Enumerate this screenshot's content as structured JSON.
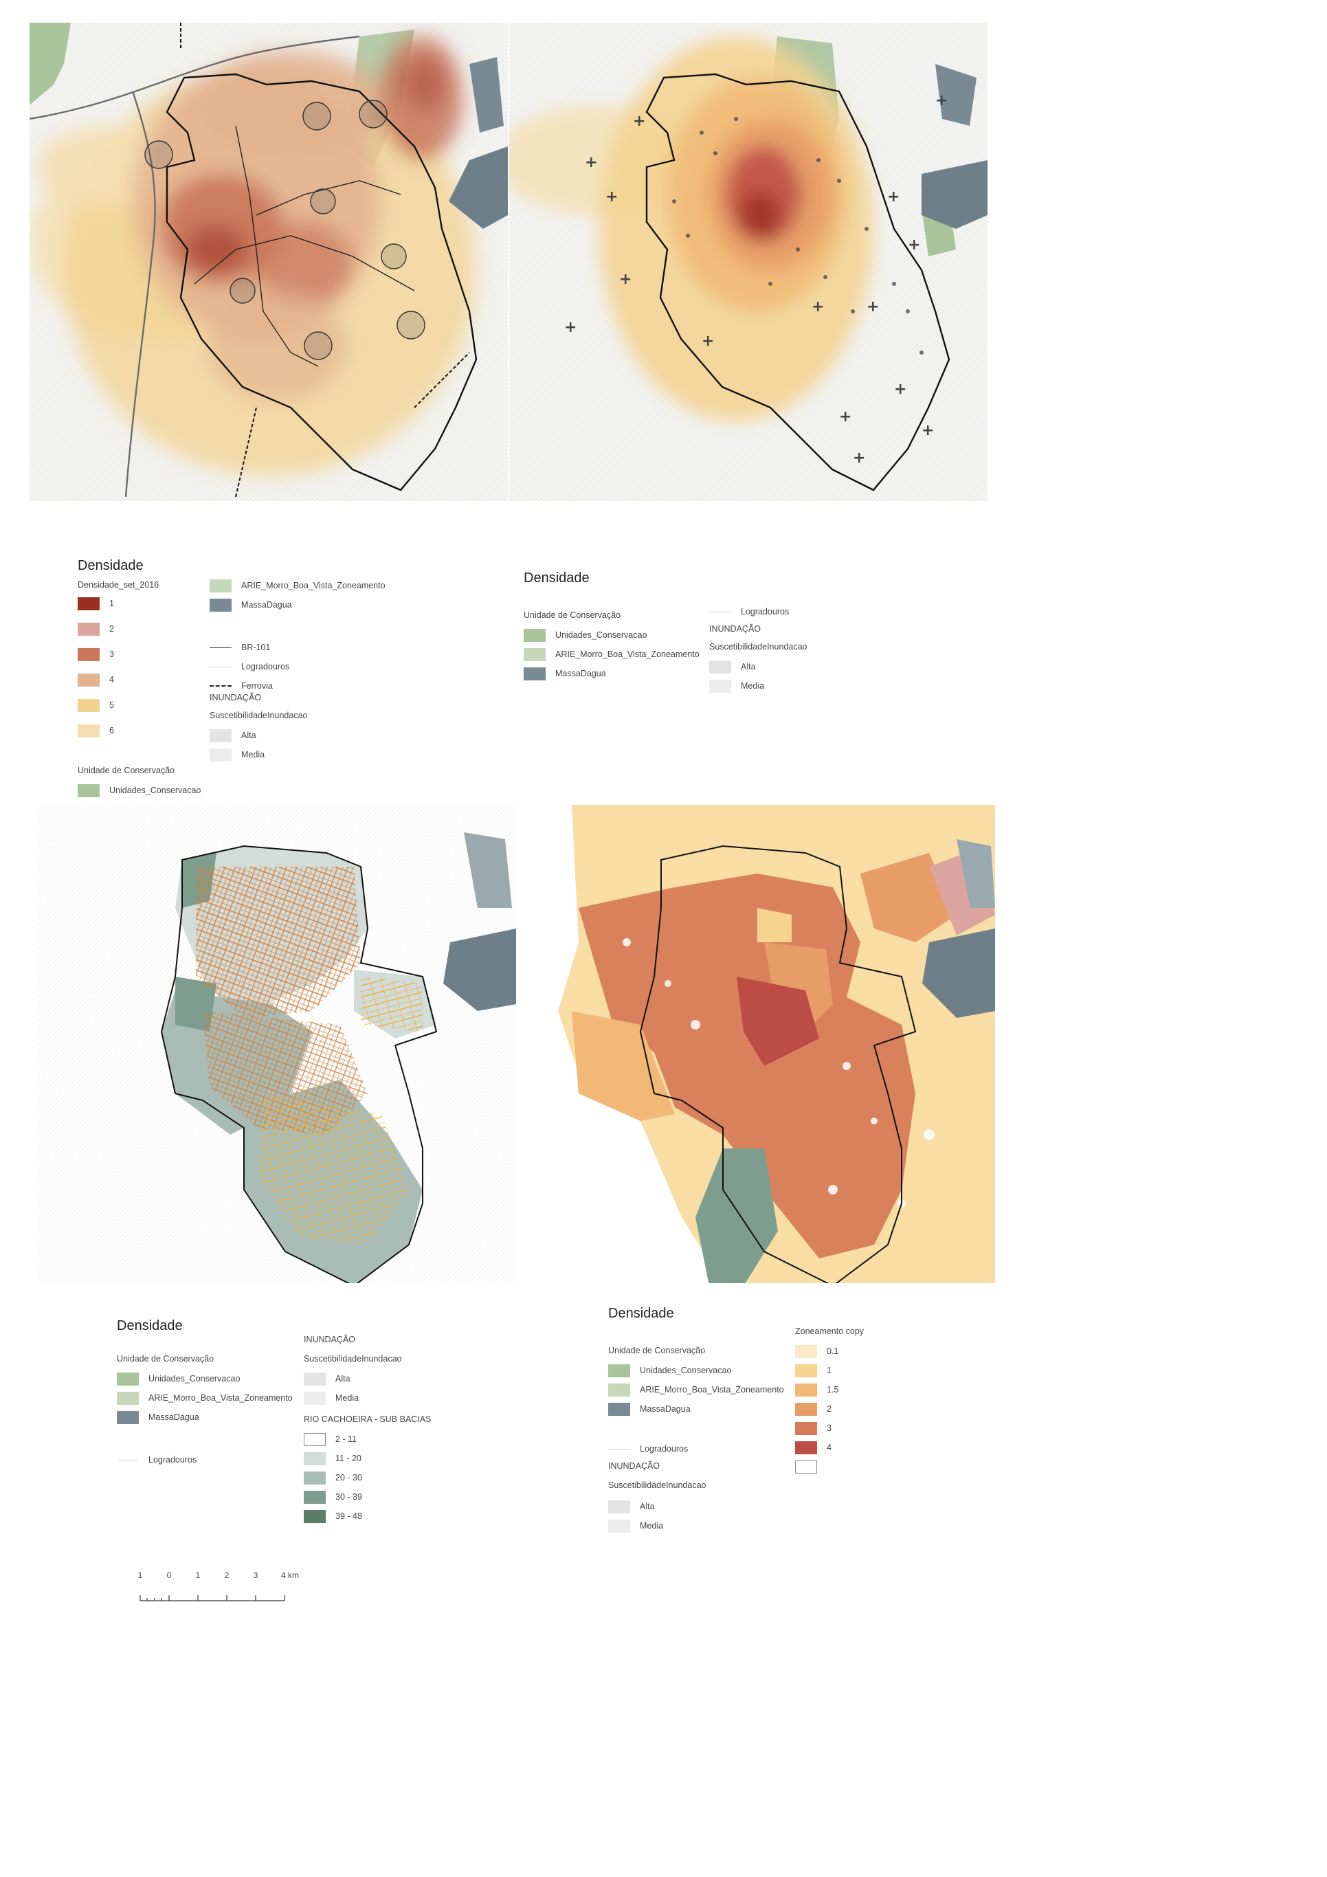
{
  "legends": {
    "top_left": {
      "title": "Densidade",
      "density_heading": "Densidade_set_2016",
      "density_items": [
        {
          "label": "1",
          "color": "#9b2f22"
        },
        {
          "label": "2",
          "color": "#dca59f"
        },
        {
          "label": "3",
          "color": "#c9765a"
        },
        {
          "label": "4",
          "color": "#e3b38f"
        },
        {
          "label": "5",
          "color": "#f3d28f"
        },
        {
          "label": "6",
          "color": "#f5dfb1"
        }
      ],
      "conservation_heading": "Unidade de Conservação",
      "conservation_item": {
        "label": "Unidades_Conservacao",
        "color": "#a9c39b"
      },
      "col2_items": [
        {
          "label": "ARIE_Morro_Boa_Vista_Zoneamento",
          "color": "#c5d8b9"
        },
        {
          "label": "MassaDagua",
          "color": "#7a8a94"
        }
      ],
      "line_items": [
        {
          "label": "BR-101",
          "style": "line"
        },
        {
          "label": "Logradouros",
          "style": "thin"
        },
        {
          "label": "Ferrovia",
          "style": "dashed"
        }
      ],
      "flood_heading": "INUNDAÇÃO",
      "flood_subheading": "SuscetibilidadeInundacao",
      "flood_items": [
        {
          "label": "Alta",
          "color": "#e3e3e3"
        },
        {
          "label": "Media",
          "color": "#ececec"
        }
      ]
    },
    "top_right": {
      "title": "Densidade",
      "conservation_heading": "Unidade de Conservação",
      "conservation_items": [
        {
          "label": "Unidades_Conservacao",
          "color": "#a9c39b"
        },
        {
          "label": "ARIE_Morro_Boa_Vista_Zoneamento",
          "color": "#c5d8b9"
        },
        {
          "label": "MassaDagua",
          "color": "#7a8a94"
        }
      ],
      "roads_label": "Logradouros",
      "flood_heading": "INUNDAÇÃO",
      "flood_subheading": "SuscetibilidadeInundacao",
      "flood_items": [
        {
          "label": "Alta",
          "color": "#e3e3e3"
        },
        {
          "label": "Media",
          "color": "#ececec"
        }
      ]
    },
    "bottom_left": {
      "title": "Densidade",
      "conservation_heading": "Unidade de Conservação",
      "conservation_items": [
        {
          "label": "Unidades_Conservacao",
          "color": "#a9c39b"
        },
        {
          "label": "ARIE_Morro_Boa_Vista_Zoneamento",
          "color": "#c5d8b9"
        },
        {
          "label": "MassaDagua",
          "color": "#7a8a94"
        }
      ],
      "roads_label": "Logradouros",
      "flood_heading": "INUNDAÇÃO",
      "flood_subheading": "SuscetibilidadeInundacao",
      "flood_items": [
        {
          "label": "Alta",
          "color": "#e3e3e3"
        },
        {
          "label": "Media",
          "color": "#ececec"
        }
      ],
      "basins_heading": "RIO CACHOEIRA - SUB BACIAS",
      "basin_items": [
        {
          "label": "2 - 11",
          "color": "#ffffff"
        },
        {
          "label": "11 - 20",
          "color": "#d3dcd8"
        },
        {
          "label": "20 - 30",
          "color": "#aabcb6"
        },
        {
          "label": "30 - 39",
          "color": "#7d9d8e"
        },
        {
          "label": "39 - 48",
          "color": "#5b7e6a"
        }
      ]
    },
    "bottom_right": {
      "title": "Densidade",
      "conservation_heading": "Unidade de Conservação",
      "conservation_items": [
        {
          "label": "Unidades_Conservacao",
          "color": "#a9c39b"
        },
        {
          "label": "ARIE_Morro_Boa_Vista_Zoneamento",
          "color": "#c5d8b9"
        },
        {
          "label": "MassaDagua",
          "color": "#7a8a94"
        }
      ],
      "roads_label": "Logradouros",
      "flood_heading": "INUNDAÇÃO",
      "flood_subheading": "SuscetibilidadeInundacao",
      "flood_items": [
        {
          "label": "Alta",
          "color": "#e3e3e3"
        },
        {
          "label": "Media",
          "color": "#ececec"
        }
      ],
      "zoning_heading": "Zoneamento copy",
      "zoning_items": [
        {
          "label": "0.1",
          "color": "#fbebc8"
        },
        {
          "label": "1",
          "color": "#f6d48f"
        },
        {
          "label": "1.5",
          "color": "#f1b876"
        },
        {
          "label": "2",
          "color": "#e89c68"
        },
        {
          "label": "3",
          "color": "#d77a57"
        },
        {
          "label": "4",
          "color": "#bd4c47"
        },
        {
          "label": "",
          "color": "#ffffff"
        }
      ]
    }
  },
  "scalebar": {
    "labels": [
      "1",
      "0",
      "1",
      "2",
      "3",
      "4 km"
    ]
  },
  "colors": {
    "water": "#6e7f89",
    "conservation": "#a9c39b",
    "boundary": "#111111",
    "background": "#f4f4f2"
  }
}
